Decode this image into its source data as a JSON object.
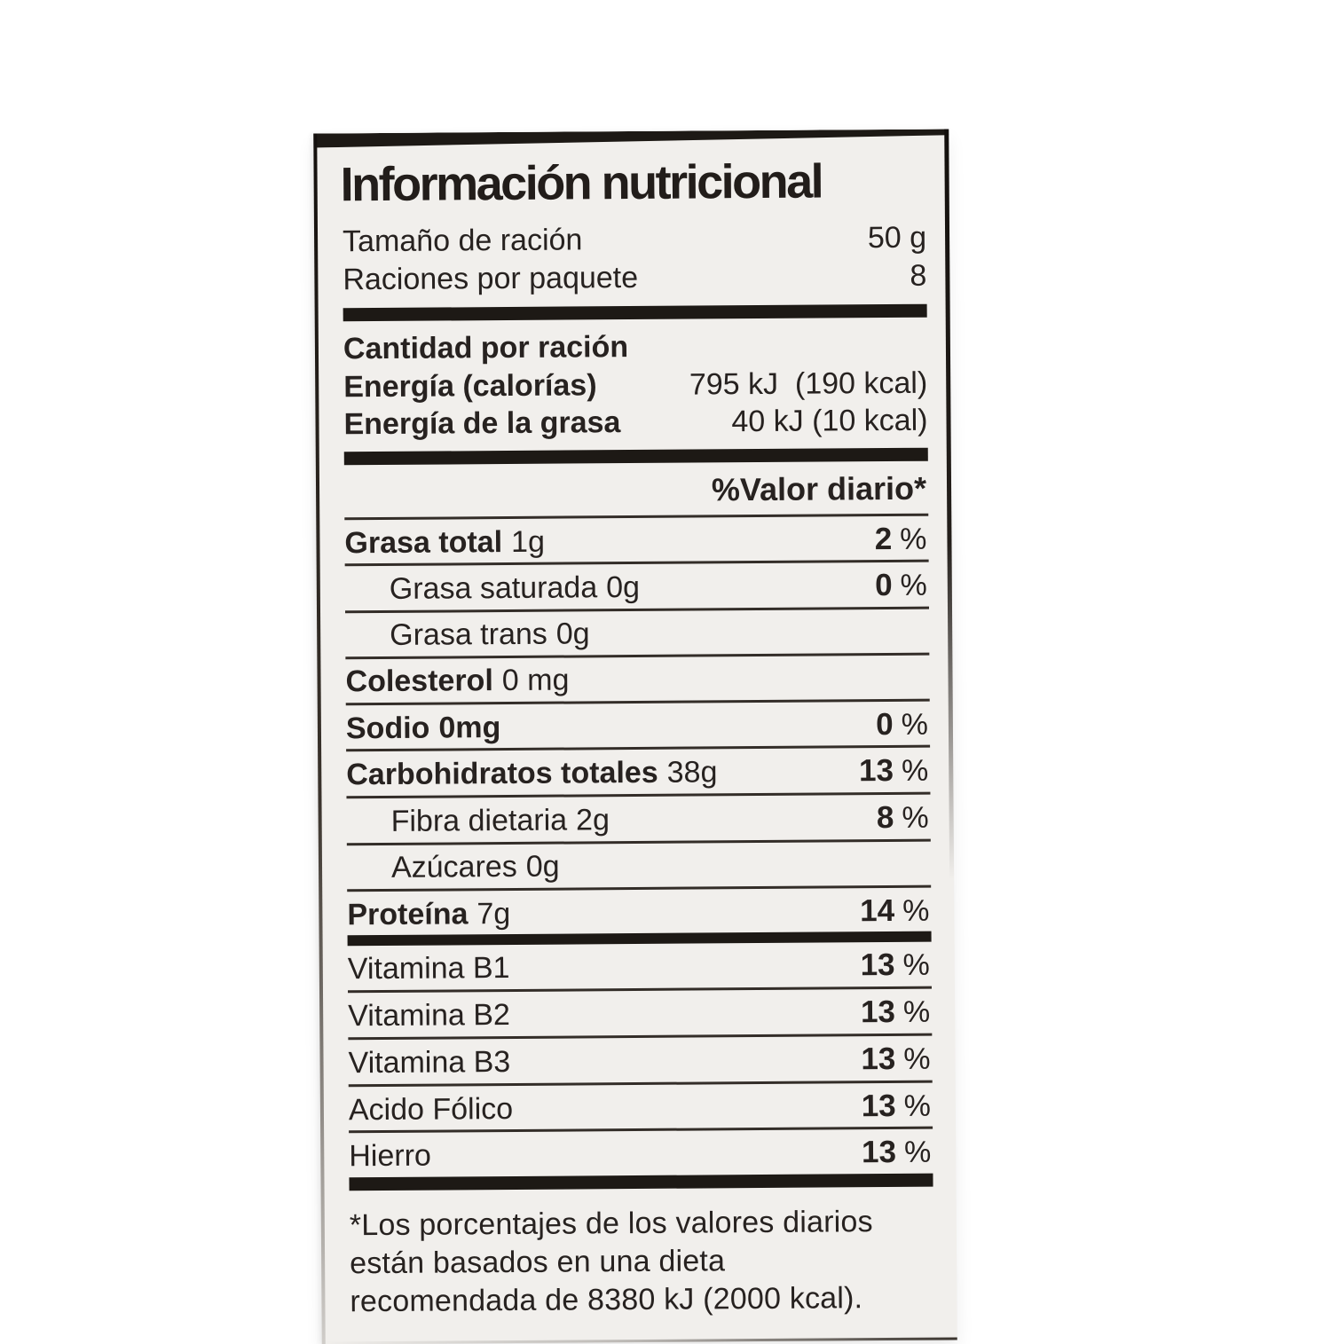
{
  "label": {
    "title": "Información nutricional",
    "serving_rows": [
      {
        "name": "Tamaño de ración",
        "value": "50 g"
      },
      {
        "name": "Raciones por paquete",
        "value": "8"
      }
    ],
    "amount_header": "Cantidad por ración",
    "energy_rows": [
      {
        "name": "Energía (calorías)",
        "value": "795 kJ  (190 kcal)"
      },
      {
        "name": "Energía de la grasa",
        "value": "40 kJ (10 kcal)"
      }
    ],
    "daily_value_header": "%Valor diario*",
    "percent_sign": "%",
    "nutrient_rows": [
      {
        "name": "Grasa total",
        "amount": "1g",
        "name_bold": true,
        "amount_bold": false,
        "indent": false,
        "pct": "2"
      },
      {
        "name": "Grasa saturada",
        "amount": "0g",
        "name_bold": false,
        "amount_bold": false,
        "indent": true,
        "pct": "0"
      },
      {
        "name": "Grasa trans",
        "amount": "0g",
        "name_bold": false,
        "amount_bold": false,
        "indent": true,
        "pct": ""
      },
      {
        "name": "Colesterol",
        "amount": "0 mg",
        "name_bold": true,
        "amount_bold": false,
        "indent": false,
        "pct": ""
      },
      {
        "name": "Sodio",
        "amount": "0mg",
        "name_bold": true,
        "amount_bold": true,
        "indent": false,
        "pct": "0"
      },
      {
        "name": "Carbohidratos totales",
        "amount": "38g",
        "name_bold": true,
        "amount_bold": false,
        "indent": false,
        "pct": "13"
      },
      {
        "name": "Fibra dietaria",
        "amount": "2g",
        "name_bold": false,
        "amount_bold": false,
        "indent": true,
        "pct": "8"
      },
      {
        "name": "Azúcares",
        "amount": "0g",
        "name_bold": false,
        "amount_bold": false,
        "indent": true,
        "pct": ""
      },
      {
        "name": "Proteína",
        "amount": "7g",
        "name_bold": true,
        "amount_bold": false,
        "indent": false,
        "pct": "14",
        "thick_after": "medium"
      },
      {
        "name": "Vitamina B1",
        "amount": "",
        "name_bold": false,
        "amount_bold": false,
        "indent": false,
        "pct": "13"
      },
      {
        "name": "Vitamina B2",
        "amount": "",
        "name_bold": false,
        "amount_bold": false,
        "indent": false,
        "pct": "13"
      },
      {
        "name": "Vitamina B3",
        "amount": "",
        "name_bold": false,
        "amount_bold": false,
        "indent": false,
        "pct": "13"
      },
      {
        "name": "Acido Fólico",
        "amount": "",
        "name_bold": false,
        "amount_bold": false,
        "indent": false,
        "pct": "13"
      },
      {
        "name": "Hierro",
        "amount": "",
        "name_bold": false,
        "amount_bold": false,
        "indent": false,
        "pct": "13",
        "thick_after": "thick"
      }
    ],
    "footnote_lines": [
      "*Los porcentajes de los valores diarios",
      "están basados en una dieta",
      "recomendada de 8380 kJ (2000 kcal)."
    ],
    "colors": {
      "label_bg": "#f1efec",
      "ink": "#272220",
      "bar": "#1d1915",
      "page_bg": "#ffffff"
    }
  }
}
